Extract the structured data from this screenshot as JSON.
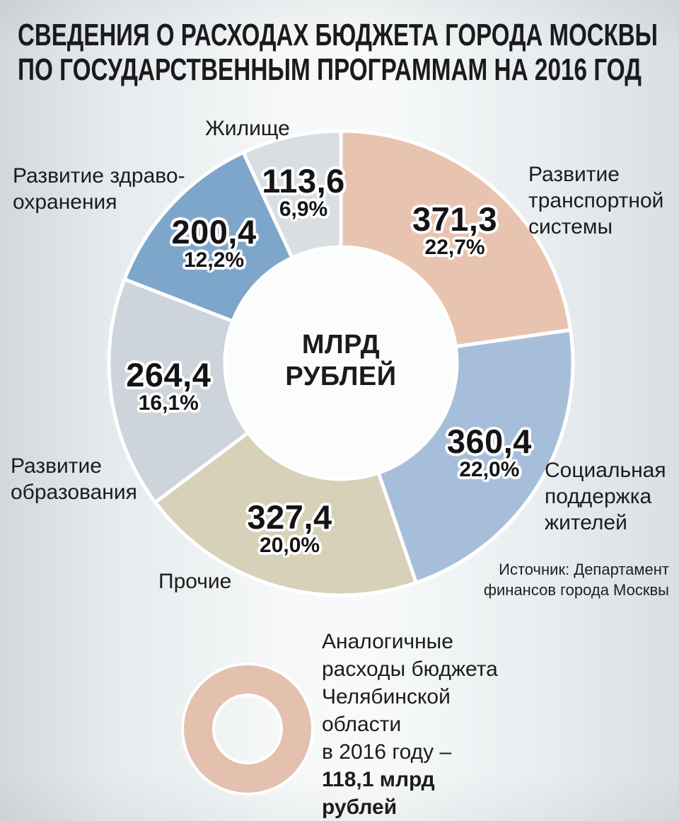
{
  "title": {
    "line1": "СВЕДЕНИЯ О РАСХОДАХ БЮДЖЕТА ГОРОДА МОСКВЫ",
    "line2": "ПО ГОСУДАРСТВЕННЫМ ПРОГРАММАМ НА 2016 ГОД"
  },
  "chart_data": {
    "type": "pie",
    "variant": "donut",
    "title": "СВЕДЕНИЯ О РАСХОДАХ БЮДЖЕТА ГОРОДА МОСКВЫ ПО ГОСУДАРСТВЕННЫМ ПРОГРАММАМ НА 2016 ГОД",
    "units": "млрд рублей",
    "center_label_display": "МЛРД\nРУБЛЕЙ",
    "start_angle": "12-oclock",
    "direction": "clockwise",
    "segments": [
      {
        "label": "Развитие транспортной системы",
        "value": 371.3,
        "value_display": "371,3",
        "percent": 22.7,
        "percent_display": "22,7%",
        "color": "#e8c4b0"
      },
      {
        "label": "Социальная поддержка жителей",
        "value": 360.4,
        "value_display": "360,4",
        "percent": 22.0,
        "percent_display": "22,0%",
        "color": "#a7bedb"
      },
      {
        "label": "Прочие",
        "value": 327.4,
        "value_display": "327,4",
        "percent": 20.0,
        "percent_display": "20,0%",
        "color": "#d6d1b8"
      },
      {
        "label": "Развитие образования",
        "value": 264.4,
        "value_display": "264,4",
        "percent": 16.1,
        "percent_display": "16,1%",
        "color": "#cdd4db"
      },
      {
        "label": "Развитие здравоохранения",
        "value": 200.4,
        "value_display": "200,4",
        "percent": 12.2,
        "percent_display": "12,2%",
        "color": "#7ea6cb"
      },
      {
        "label": "Жилище",
        "value": 113.6,
        "value_display": "113,6",
        "percent": 6.9,
        "percent_display": "6,9%",
        "color": "#d9dee2"
      }
    ]
  },
  "callouts": {
    "housing": "Жилище",
    "health": "Развитие здраво-\nохранения",
    "transport": "Развитие\nтранспортной\nсистемы",
    "social": "Социальная\nподдержка\nжителей",
    "education": "Развитие\nобразования",
    "other": "Прочие"
  },
  "source": "Источник: Департамент\nфинансов города Москвы",
  "comparison": {
    "ring_color": "#e3c1ae",
    "text_regular": "Аналогичные\nрасходы бюджета\nЧелябинской\nобласти\nв 2016 году –",
    "text_bold": "118,1 млрд\nрублей"
  }
}
